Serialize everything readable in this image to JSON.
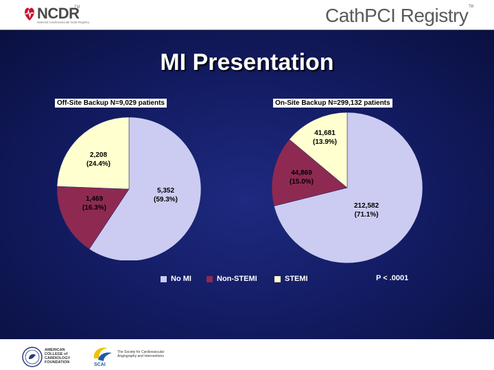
{
  "header": {
    "ncdr_text": "NCDR",
    "ncdr_tm": "TM",
    "ncdr_sub": "National Cardiovascular Data Registry",
    "registry_title_a": "Cath",
    "registry_title_b": "PCI Registry",
    "registry_tm": "TM"
  },
  "slide": {
    "title": "MI Presentation"
  },
  "footer": {
    "acc_lines": [
      "AMERICAN",
      "COLLEGE of",
      "CARDIOLOGY",
      "FOUNDATION"
    ],
    "scai_lines": [
      "The Society for Cardiovascular",
      "Angiography and Interventions"
    ],
    "scai_abbr": "SCAI"
  },
  "colors": {
    "no_mi": "#ccccf2",
    "non_stemi": "#8e2a52",
    "stemi": "#ffffd0",
    "background": "#141d66"
  },
  "chart_data": [
    {
      "type": "pie",
      "title": "Off-Site Backup   N=9,029 patients",
      "slices": [
        {
          "category": "No MI",
          "count": "5,352",
          "percent": "(59.3%)",
          "value": 59.3
        },
        {
          "category": "Non-STEMI",
          "count": "1,469",
          "percent": "(16.3%)",
          "value": 16.3
        },
        {
          "category": "STEMI",
          "count": "2,208",
          "percent": "(24.4%)",
          "value": 24.4
        }
      ]
    },
    {
      "type": "pie",
      "title": "On-Site Backup N=299,132 patients",
      "slices": [
        {
          "category": "No MI",
          "count": "212,582",
          "percent": "(71.1%)",
          "value": 71.1
        },
        {
          "category": "Non-STEMI",
          "count": "44,869",
          "percent": "(15.0%)",
          "value": 15.0
        },
        {
          "category": "STEMI",
          "count": "41,681",
          "percent": "(13.9%)",
          "value": 13.9
        }
      ]
    }
  ],
  "legend": {
    "items": [
      {
        "label": "No MI",
        "color": "#ccccf2"
      },
      {
        "label": "Non-STEMI",
        "color": "#8e2a52"
      },
      {
        "label": "STEMI",
        "color": "#ffffd0"
      }
    ],
    "pvalue": "P < .0001"
  }
}
